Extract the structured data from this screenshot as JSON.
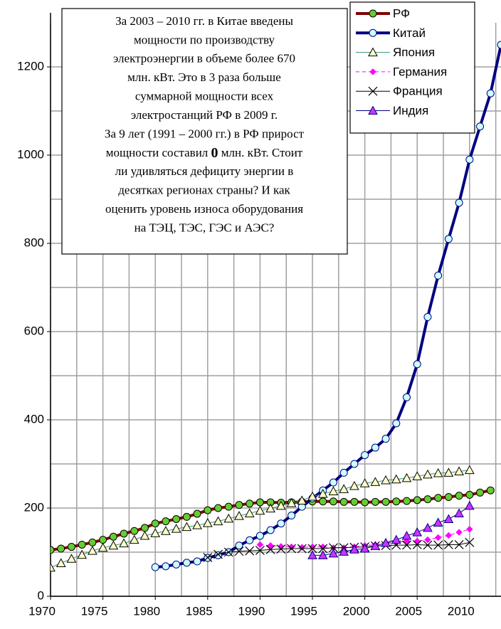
{
  "chart_data": {
    "type": "line",
    "x": [
      1970,
      1971,
      1972,
      1973,
      1974,
      1975,
      1976,
      1977,
      1978,
      1979,
      1980,
      1981,
      1982,
      1983,
      1984,
      1985,
      1986,
      1987,
      1988,
      1989,
      1990,
      1991,
      1992,
      1993,
      1994,
      1995,
      1996,
      1997,
      1998,
      1999,
      2000,
      2001,
      2002,
      2003,
      2004,
      2005,
      2006,
      2007,
      2008,
      2009,
      2010,
      2011,
      2012,
      2013
    ],
    "series": [
      {
        "name": "РФ",
        "color": "#800000",
        "width": 4,
        "marker": "circle",
        "marker_color": "#66cc33",
        "marker_stroke": "#000000",
        "values": [
          105,
          108,
          112,
          117,
          122,
          128,
          135,
          142,
          148,
          155,
          165,
          170,
          175,
          180,
          187,
          195,
          200,
          203,
          207,
          210,
          213,
          213,
          212,
          213,
          214,
          215,
          215,
          215,
          214,
          214,
          213,
          214,
          214,
          215,
          216,
          218,
          220,
          223,
          225,
          228,
          230,
          235,
          240,
          null
        ]
      },
      {
        "name": "Китай",
        "color": "#000080",
        "width": 4,
        "marker": "circle",
        "marker_color": "#ccffff",
        "marker_stroke": "#000080",
        "values": [
          null,
          null,
          null,
          null,
          null,
          null,
          null,
          null,
          null,
          null,
          66,
          68,
          72,
          76,
          79,
          87,
          93,
          100,
          115,
          127,
          137,
          150,
          165,
          183,
          203,
          222,
          240,
          258,
          280,
          300,
          320,
          337,
          357,
          392,
          451,
          526,
          633,
          727,
          810,
          892,
          990,
          1065,
          1140,
          1250
        ]
      },
      {
        "name": "Япония",
        "color": "#339966",
        "width": 1,
        "marker": "triangle",
        "marker_color": "#ffffcc",
        "marker_stroke": "#000000",
        "values": [
          65,
          75,
          85,
          94,
          103,
          110,
          115,
          120,
          128,
          137,
          143,
          148,
          153,
          157,
          161,
          166,
          170,
          176,
          182,
          188,
          194,
          199,
          205,
          211,
          217,
          226,
          232,
          238,
          243,
          250,
          256,
          259,
          263,
          265,
          268,
          272,
          276,
          279,
          280,
          283,
          286,
          null,
          null,
          null
        ]
      },
      {
        "name": "Германия",
        "color": "#ff00ff",
        "width": 1,
        "dash": true,
        "marker": "diamond",
        "marker_color": "#ff00ff",
        "marker_stroke": "#ff00ff",
        "values": [
          null,
          null,
          null,
          null,
          null,
          null,
          null,
          null,
          null,
          null,
          null,
          null,
          null,
          null,
          null,
          null,
          null,
          null,
          null,
          null,
          117,
          115,
          113,
          112,
          111,
          112,
          112,
          110,
          110,
          112,
          115,
          117,
          120,
          122,
          125,
          125,
          128,
          133,
          138,
          145,
          152,
          null,
          null,
          null
        ]
      },
      {
        "name": "Франция",
        "color": "#000000",
        "width": 1,
        "marker": "x",
        "marker_color": "#000000",
        "marker_stroke": "#000000",
        "values": [
          null,
          null,
          null,
          null,
          null,
          null,
          null,
          null,
          null,
          null,
          null,
          null,
          null,
          null,
          null,
          88,
          95,
          100,
          102,
          103,
          104,
          106,
          107,
          108,
          108,
          108,
          108,
          110,
          110,
          111,
          112,
          114,
          115,
          116,
          116,
          117,
          116,
          116,
          117,
          117,
          122,
          null,
          null,
          null
        ]
      },
      {
        "name": "Индия",
        "color": "#000080",
        "width": 1,
        "marker": "triangle",
        "marker_color": "#cc33ff",
        "marker_stroke": "#000080",
        "values": [
          null,
          null,
          null,
          null,
          null,
          null,
          null,
          null,
          null,
          null,
          null,
          null,
          null,
          null,
          null,
          null,
          null,
          null,
          null,
          null,
          null,
          null,
          null,
          null,
          null,
          93,
          93,
          97,
          101,
          106,
          108,
          114,
          121,
          128,
          137,
          145,
          155,
          167,
          175,
          188,
          205,
          null,
          null,
          null
        ]
      }
    ],
    "xlim": [
      1970,
      2013
    ],
    "xticks": [
      1970,
      1975,
      1980,
      1985,
      1990,
      1995,
      2000,
      2005,
      2010
    ],
    "ylim": [
      0,
      1300
    ],
    "yticks": [
      0,
      200,
      400,
      600,
      800,
      1000,
      1200
    ],
    "grid": true,
    "legend": "top-right",
    "annotation": {
      "lines": [
        "За 2003 – 2010 гг. в Китае введены",
        "мощности по производству",
        "электроэнергии в объеме  более 670",
        "млн. кВт. Это в 3 раза больше",
        "суммарной  мощности всех",
        "электростанций РФ в 2009 г.",
        "За 9 лет (1991 – 2000 гг.) в РФ прирост",
        [
          "мощности составил ",
          "0",
          " млн. кВт. Стоит"
        ],
        "ли удивляться дефициту энергии в",
        "десятках регионах страны? И как",
        "оценить уровень износа оборудования",
        "на ТЭЦ, ТЭС, ГЭС и АЭС?"
      ]
    }
  }
}
